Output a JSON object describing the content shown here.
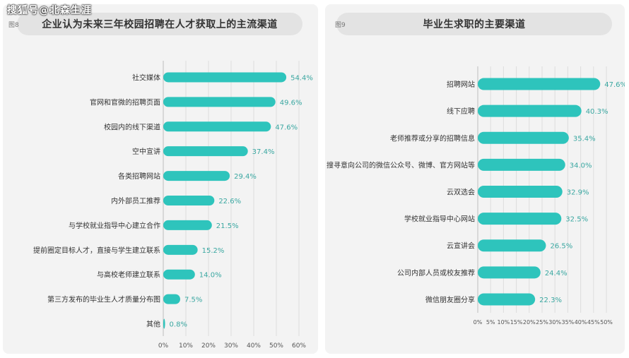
{
  "watermark": "搜狐号@北森生涯",
  "chart_data": [
    {
      "type": "bar",
      "orientation": "horizontal",
      "fig_label": "图8",
      "title": "企业认为未来三年校园招聘在人才获取上的主流渠道",
      "categories": [
        "社交媒体",
        "官网和官微的招聘页面",
        "校园内的线下渠道",
        "空中宣讲",
        "各类招聘网站",
        "内外部员工推荐",
        "与学校就业指导中心建立合作",
        "提前圈定目标人才，直接与学生建立联系",
        "与高校老师建立联系",
        "第三方发布的毕业生人才质量分布图",
        "其他"
      ],
      "values": [
        54.4,
        49.6,
        47.6,
        37.4,
        29.4,
        22.6,
        21.5,
        15.2,
        14.0,
        7.5,
        0.8
      ],
      "value_labels": [
        "54.4%",
        "49.6%",
        "47.6%",
        "37.4%",
        "29.4%",
        "22.6%",
        "21.5%",
        "15.2%",
        "14.0%",
        "7.5%",
        "0.8%"
      ],
      "xlim": [
        0,
        60
      ],
      "xticks": [
        "0%",
        "10%",
        "20%",
        "30%",
        "40%",
        "50%",
        "60%"
      ],
      "bar_color": "#2ec4bc",
      "grid": true
    },
    {
      "type": "bar",
      "orientation": "horizontal",
      "fig_label": "图9",
      "title": "毕业生求职的主要渠道",
      "categories": [
        "招聘网站",
        "线下应聘",
        "老师推荐或分享的招聘信息",
        "搜寻意向公司的微信公众号、微博、官方网站等",
        "云双选会",
        "学校就业指导中心网站",
        "云宣讲会",
        "公司内部人员或校友推荐",
        "微信朋友圈分享"
      ],
      "values": [
        47.6,
        40.3,
        35.4,
        34.0,
        32.9,
        32.5,
        26.5,
        24.4,
        22.3
      ],
      "value_labels": [
        "47.6%",
        "40.3%",
        "35.4%",
        "34.0%",
        "32.9%",
        "32.5%",
        "26.5%",
        "24.4%",
        "22.3%"
      ],
      "xlim": [
        0,
        50
      ],
      "xticks": [
        "0%",
        "5%",
        "10%",
        "15%",
        "20%",
        "25%",
        "30%",
        "35%",
        "40%",
        "45%",
        "50%"
      ],
      "bar_color": "#2ec4bc",
      "grid": true
    }
  ]
}
